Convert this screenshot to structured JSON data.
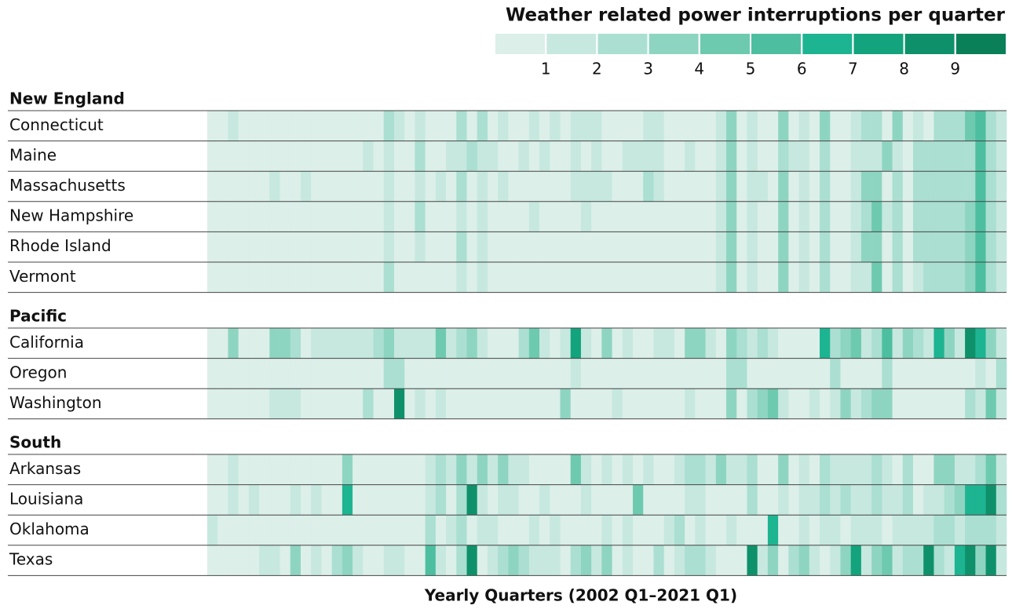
{
  "chart_data": {
    "type": "heatmap",
    "title": "Weather related power interruptions per quarter",
    "x_label": "Yearly Quarters (2002 Q1–2021 Q1)",
    "clim": [
      0,
      10
    ],
    "legend_ticks": [
      1,
      2,
      3,
      4,
      5,
      6,
      7,
      8,
      9
    ],
    "colors": [
      "#dcefe9",
      "#c6e8df",
      "#aadfd1",
      "#8ed5c1",
      "#6ecaaf",
      "#4dbfa0",
      "#1db491",
      "#13a37d",
      "#0e916a",
      "#098058"
    ],
    "groups": [
      {
        "name": "New England",
        "rows": [
          {
            "name": "Connecticut",
            "values": [
              0,
              0,
              1,
              0,
              0,
              0,
              0,
              0,
              0,
              0,
              0,
              0,
              0,
              0,
              0,
              0,
              0,
              2,
              1,
              0,
              1,
              0,
              0,
              0,
              2,
              0,
              2,
              0,
              1,
              0,
              0,
              1,
              0,
              1,
              0,
              1,
              1,
              1,
              0,
              0,
              0,
              0,
              1,
              1,
              0,
              0,
              0,
              0,
              0,
              1,
              3,
              0,
              1,
              0,
              0,
              3,
              0,
              1,
              0,
              3,
              0,
              0,
              1,
              2,
              2,
              0,
              3,
              0,
              1,
              0,
              2,
              2,
              2,
              4,
              5,
              2,
              1
            ]
          },
          {
            "name": "Maine",
            "values": [
              0,
              0,
              0,
              0,
              0,
              0,
              0,
              0,
              0,
              0,
              0,
              0,
              0,
              0,
              0,
              1,
              0,
              1,
              0,
              0,
              2,
              0,
              0,
              1,
              1,
              2,
              1,
              1,
              0,
              0,
              1,
              0,
              1,
              0,
              0,
              1,
              0,
              1,
              0,
              0,
              1,
              1,
              1,
              1,
              0,
              0,
              1,
              0,
              0,
              1,
              3,
              0,
              1,
              0,
              0,
              2,
              1,
              1,
              0,
              2,
              0,
              0,
              1,
              1,
              1,
              3,
              1,
              0,
              2,
              2,
              2,
              2,
              2,
              2,
              5,
              2,
              1
            ]
          },
          {
            "name": "Massachusetts",
            "values": [
              0,
              0,
              0,
              0,
              0,
              0,
              1,
              0,
              0,
              1,
              0,
              0,
              0,
              0,
              0,
              0,
              0,
              1,
              0,
              0,
              1,
              0,
              1,
              0,
              2,
              0,
              1,
              0,
              1,
              0,
              0,
              0,
              0,
              0,
              0,
              1,
              1,
              1,
              1,
              0,
              0,
              0,
              2,
              1,
              0,
              0,
              0,
              0,
              0,
              1,
              3,
              0,
              1,
              1,
              0,
              3,
              0,
              1,
              0,
              2,
              0,
              0,
              1,
              3,
              3,
              0,
              2,
              0,
              2,
              2,
              2,
              2,
              2,
              2,
              5,
              2,
              1
            ]
          },
          {
            "name": "New Hampshire",
            "values": [
              0,
              0,
              0,
              0,
              0,
              0,
              0,
              0,
              0,
              0,
              0,
              0,
              0,
              0,
              0,
              0,
              0,
              1,
              0,
              0,
              2,
              0,
              0,
              0,
              1,
              0,
              1,
              0,
              0,
              0,
              0,
              1,
              0,
              0,
              0,
              0,
              1,
              0,
              0,
              0,
              0,
              0,
              0,
              0,
              0,
              0,
              0,
              0,
              0,
              1,
              3,
              0,
              1,
              0,
              0,
              3,
              0,
              1,
              0,
              2,
              0,
              0,
              1,
              2,
              4,
              1,
              2,
              0,
              2,
              2,
              2,
              2,
              2,
              3,
              5,
              2,
              1
            ]
          },
          {
            "name": "Rhode Island",
            "values": [
              0,
              0,
              0,
              0,
              0,
              0,
              0,
              0,
              0,
              0,
              0,
              0,
              0,
              0,
              0,
              0,
              0,
              1,
              0,
              0,
              1,
              0,
              0,
              0,
              2,
              0,
              1,
              0,
              0,
              0,
              0,
              0,
              0,
              0,
              0,
              0,
              0,
              0,
              0,
              0,
              0,
              0,
              0,
              0,
              0,
              0,
              0,
              0,
              0,
              1,
              3,
              0,
              1,
              0,
              0,
              3,
              0,
              1,
              0,
              2,
              0,
              0,
              1,
              3,
              3,
              0,
              2,
              0,
              2,
              2,
              2,
              2,
              2,
              3,
              5,
              2,
              1
            ]
          },
          {
            "name": "Vermont",
            "values": [
              0,
              0,
              0,
              0,
              0,
              0,
              0,
              0,
              0,
              0,
              0,
              0,
              0,
              0,
              0,
              0,
              0,
              2,
              0,
              0,
              0,
              0,
              0,
              0,
              1,
              0,
              1,
              0,
              0,
              0,
              0,
              0,
              0,
              0,
              0,
              0,
              0,
              0,
              0,
              0,
              0,
              0,
              0,
              0,
              0,
              0,
              0,
              0,
              0,
              1,
              3,
              0,
              1,
              0,
              0,
              3,
              0,
              1,
              0,
              2,
              0,
              0,
              1,
              1,
              4,
              0,
              2,
              0,
              1,
              2,
              2,
              2,
              2,
              3,
              5,
              2,
              1
            ]
          }
        ]
      },
      {
        "name": "Pacific",
        "rows": [
          {
            "name": "California",
            "values": [
              0,
              0,
              3,
              0,
              0,
              0,
              3,
              3,
              2,
              0,
              1,
              1,
              1,
              1,
              1,
              1,
              2,
              3,
              1,
              1,
              1,
              1,
              4,
              1,
              2,
              3,
              1,
              0,
              0,
              0,
              2,
              4,
              1,
              0,
              1,
              7,
              1,
              0,
              3,
              0,
              1,
              0,
              0,
              1,
              1,
              0,
              3,
              3,
              1,
              0,
              3,
              2,
              1,
              2,
              1,
              0,
              0,
              0,
              0,
              6,
              2,
              3,
              4,
              1,
              2,
              5,
              1,
              3,
              2,
              1,
              6,
              3,
              1,
              8,
              6,
              3,
              1
            ]
          },
          {
            "name": "Oregon",
            "values": [
              0,
              0,
              0,
              0,
              0,
              0,
              0,
              0,
              0,
              0,
              0,
              0,
              0,
              0,
              0,
              0,
              0,
              2,
              2,
              0,
              0,
              0,
              0,
              0,
              0,
              0,
              0,
              0,
              0,
              0,
              0,
              0,
              0,
              0,
              0,
              1,
              0,
              0,
              0,
              0,
              0,
              0,
              0,
              0,
              0,
              0,
              0,
              0,
              0,
              0,
              2,
              2,
              0,
              0,
              0,
              0,
              0,
              0,
              0,
              0,
              2,
              0,
              0,
              0,
              0,
              2,
              0,
              0,
              0,
              0,
              0,
              0,
              0,
              0,
              1,
              0,
              2
            ]
          },
          {
            "name": "Washington",
            "values": [
              0,
              0,
              0,
              0,
              0,
              0,
              1,
              1,
              1,
              0,
              0,
              0,
              0,
              0,
              0,
              2,
              0,
              0,
              8,
              0,
              1,
              0,
              1,
              0,
              0,
              0,
              0,
              0,
              0,
              0,
              0,
              0,
              0,
              0,
              3,
              0,
              0,
              0,
              0,
              1,
              0,
              0,
              0,
              0,
              0,
              0,
              1,
              0,
              0,
              0,
              3,
              0,
              2,
              3,
              4,
              1,
              0,
              0,
              1,
              0,
              1,
              3,
              1,
              2,
              3,
              3,
              0,
              0,
              0,
              0,
              0,
              0,
              0,
              2,
              1,
              4,
              1
            ]
          }
        ]
      },
      {
        "name": "South",
        "rows": [
          {
            "name": "Arkansas",
            "values": [
              0,
              0,
              1,
              0,
              0,
              0,
              0,
              0,
              0,
              0,
              0,
              0,
              0,
              3,
              0,
              0,
              0,
              0,
              0,
              0,
              0,
              1,
              2,
              1,
              3,
              1,
              3,
              1,
              3,
              1,
              1,
              0,
              0,
              0,
              0,
              4,
              1,
              0,
              1,
              0,
              1,
              0,
              1,
              0,
              0,
              1,
              2,
              2,
              1,
              3,
              1,
              1,
              2,
              0,
              0,
              3,
              0,
              1,
              0,
              2,
              1,
              1,
              1,
              1,
              2,
              1,
              0,
              2,
              0,
              0,
              3,
              3,
              1,
              1,
              2,
              4,
              1
            ]
          },
          {
            "name": "Louisiana",
            "values": [
              0,
              0,
              1,
              0,
              1,
              0,
              0,
              0,
              1,
              0,
              1,
              0,
              0,
              6,
              0,
              0,
              0,
              0,
              0,
              0,
              0,
              1,
              2,
              0,
              2,
              8,
              1,
              0,
              1,
              1,
              0,
              0,
              1,
              0,
              0,
              0,
              1,
              0,
              0,
              0,
              0,
              4,
              0,
              0,
              0,
              0,
              1,
              1,
              0,
              0,
              0,
              0,
              2,
              0,
              0,
              1,
              0,
              1,
              1,
              2,
              1,
              2,
              1,
              1,
              2,
              1,
              1,
              2,
              0,
              1,
              1,
              2,
              3,
              6,
              6,
              8,
              2
            ]
          },
          {
            "name": "Oklahoma",
            "values": [
              1,
              0,
              0,
              0,
              0,
              0,
              0,
              0,
              0,
              0,
              0,
              0,
              0,
              0,
              0,
              0,
              0,
              0,
              0,
              0,
              0,
              2,
              0,
              1,
              2,
              0,
              1,
              1,
              0,
              0,
              0,
              1,
              0,
              1,
              0,
              0,
              0,
              0,
              1,
              0,
              1,
              0,
              0,
              0,
              1,
              2,
              0,
              1,
              0,
              0,
              1,
              0,
              0,
              0,
              6,
              0,
              0,
              1,
              0,
              1,
              1,
              0,
              1,
              1,
              1,
              0,
              1,
              1,
              1,
              1,
              2,
              2,
              1,
              2,
              2,
              2,
              1
            ]
          },
          {
            "name": "Texas",
            "values": [
              0,
              0,
              0,
              0,
              0,
              1,
              1,
              0,
              3,
              0,
              1,
              0,
              2,
              3,
              1,
              0,
              0,
              1,
              1,
              0,
              0,
              5,
              1,
              0,
              2,
              8,
              0,
              1,
              2,
              3,
              2,
              1,
              1,
              1,
              0,
              2,
              3,
              1,
              3,
              0,
              1,
              0,
              0,
              2,
              0,
              1,
              2,
              2,
              1,
              0,
              0,
              0,
              8,
              1,
              3,
              0,
              2,
              3,
              1,
              0,
              1,
              3,
              7,
              1,
              3,
              4,
              1,
              2,
              2,
              8,
              2,
              1,
              6,
              8,
              3,
              8,
              1
            ]
          }
        ]
      }
    ]
  }
}
